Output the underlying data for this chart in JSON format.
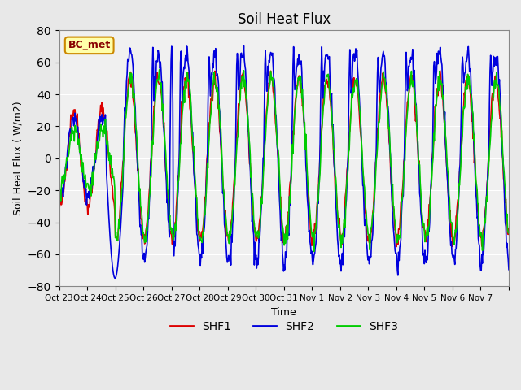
{
  "title": "Soil Heat Flux",
  "ylabel": "Soil Heat Flux ( W/m2)",
  "xlabel": "Time",
  "ylim": [
    -80,
    80
  ],
  "colors": {
    "SHF1": "#dd0000",
    "SHF2": "#0000dd",
    "SHF3": "#00cc00"
  },
  "line_width": 1.2,
  "bg_color": "#e8e8e8",
  "plot_bg": "#f0f0f0",
  "annotation_text": "BC_met",
  "annotation_bg": "#ffffaa",
  "annotation_border": "#cc8800",
  "x_labels": [
    "Oct 23",
    "Oct 24",
    "Oct 25",
    "Oct 26",
    "Oct 27",
    "Oct 28",
    "Oct 29",
    "Oct 30",
    "Oct 31",
    "Nov 1",
    "Nov 2",
    "Nov 3",
    "Nov 4",
    "Nov 5",
    "Nov 6",
    "Nov 7"
  ],
  "n_days": 16,
  "pts_per_day": 48
}
